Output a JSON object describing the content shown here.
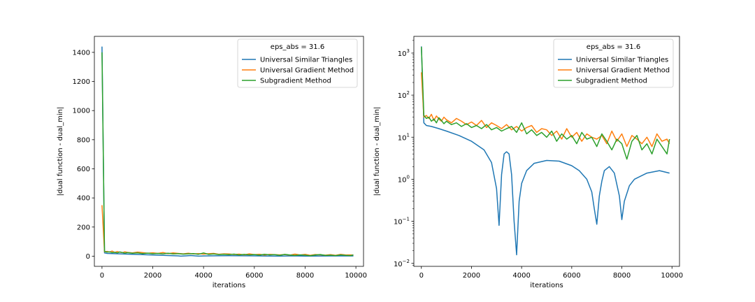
{
  "chart_data": [
    {
      "type": "line",
      "scale": "linear",
      "xlabel": "iterations",
      "ylabel": "|dual function - dual_min|",
      "xlim": [
        -300,
        10300
      ],
      "ylim": [
        -70,
        1510
      ],
      "xticks": [
        0,
        2000,
        4000,
        6000,
        8000,
        10000
      ],
      "yticks": [
        0,
        200,
        400,
        600,
        800,
        1000,
        1200,
        1400
      ],
      "legend": {
        "title": "eps_abs = 31.6",
        "placement": "top-right"
      },
      "series": [
        {
          "name": "Universal Similar Triangles",
          "color": "#1f77b4",
          "x": [
            0,
            100,
            200,
            400,
            700,
            1000,
            1500,
            2000,
            2500,
            3000,
            3100,
            3300,
            3500,
            3800,
            4000,
            4500,
            5000,
            5500,
            6000,
            6500,
            7000,
            7500,
            8000,
            8500,
            9000,
            9500,
            9900
          ],
          "y": [
            1440,
            22,
            19,
            18,
            16,
            14,
            11,
            8,
            5,
            2,
            0.1,
            2,
            4.5,
            0.02,
            1.5,
            2.5,
            2.8,
            2.6,
            2,
            1,
            0.1,
            1.9,
            0.1,
            1,
            1.5,
            1.6,
            1.4
          ]
        },
        {
          "name": "Universal Gradient Method",
          "color": "#ff7f0e",
          "x": [
            0,
            100,
            200,
            300,
            400,
            500,
            600,
            700,
            800,
            900,
            1000,
            1200,
            1400,
            1600,
            1800,
            2000,
            2200,
            2400,
            2600,
            2800,
            3000,
            3200,
            3400,
            3600,
            3800,
            4000,
            4200,
            4400,
            4600,
            4800,
            5000,
            5200,
            5400,
            5600,
            5800,
            6000,
            6200,
            6400,
            6600,
            6800,
            7000,
            7200,
            7400,
            7600,
            7800,
            8000,
            8200,
            8400,
            8600,
            8800,
            9000,
            9200,
            9400,
            9600,
            9800,
            9900
          ],
          "y": [
            350,
            30,
            33,
            28,
            35,
            25,
            32,
            27,
            24,
            30,
            26,
            22,
            28,
            24,
            20,
            23,
            19,
            25,
            17,
            22,
            19,
            16,
            20,
            15,
            18,
            14,
            17,
            19,
            13,
            16,
            15,
            11,
            14,
            9,
            16,
            10,
            13,
            8,
            12,
            10,
            9,
            11,
            7,
            14,
            8,
            12,
            6,
            11,
            9,
            7,
            10,
            6,
            12,
            8,
            9,
            7
          ]
        },
        {
          "name": "Subgradient Method",
          "color": "#2ca02c",
          "x": [
            0,
            100,
            200,
            300,
            400,
            500,
            600,
            700,
            800,
            900,
            1000,
            1200,
            1400,
            1600,
            1800,
            2000,
            2200,
            2400,
            2600,
            2800,
            3000,
            3200,
            3400,
            3600,
            3800,
            4000,
            4200,
            4400,
            4600,
            4800,
            5000,
            5200,
            5400,
            5600,
            5800,
            6000,
            6200,
            6400,
            6600,
            6800,
            7000,
            7200,
            7400,
            7600,
            7800,
            8000,
            8200,
            8400,
            8600,
            8800,
            9000,
            9200,
            9400,
            9600,
            9800,
            9900
          ],
          "y": [
            1400,
            33,
            28,
            30,
            24,
            27,
            22,
            29,
            25,
            21,
            24,
            20,
            22,
            18,
            21,
            17,
            19,
            16,
            20,
            15,
            17,
            14,
            16,
            18,
            13,
            22,
            12,
            15,
            11,
            13,
            10,
            14,
            8,
            12,
            9,
            11,
            7,
            13,
            9,
            10,
            6,
            12,
            8,
            5,
            9,
            7,
            3,
            8,
            11,
            5,
            7,
            4,
            9,
            6,
            4,
            9
          ]
        }
      ]
    },
    {
      "type": "line",
      "scale": "log",
      "xlabel": "iterations",
      "ylabel": "|dual function - dual_min|",
      "xlim": [
        -300,
        10300
      ],
      "ylim": [
        0.0085,
        2500
      ],
      "xticks": [
        0,
        2000,
        4000,
        6000,
        8000,
        10000
      ],
      "yticks": [
        0.01,
        0.1,
        1,
        10,
        100,
        1000
      ],
      "ytick_labels": [
        [
          "10",
          "−2"
        ],
        [
          "10",
          "−1"
        ],
        [
          "10",
          "0"
        ],
        [
          "10",
          "1"
        ],
        [
          "10",
          "2"
        ],
        [
          "10",
          "3"
        ]
      ],
      "legend": {
        "title": "eps_abs = 31.6",
        "placement": "top-right"
      },
      "series": [
        {
          "name": "Universal Similar Triangles",
          "color": "#1f77b4",
          "x": [
            0,
            100,
            200,
            400,
            700,
            1000,
            1500,
            2000,
            2500,
            2800,
            3000,
            3100,
            3200,
            3300,
            3400,
            3500,
            3600,
            3700,
            3800,
            3900,
            4000,
            4200,
            4500,
            5000,
            5500,
            6000,
            6300,
            6600,
            6800,
            6900,
            7000,
            7100,
            7200,
            7300,
            7500,
            7700,
            7900,
            8000,
            8100,
            8300,
            8500,
            9000,
            9500,
            9900
          ],
          "y": [
            1440,
            22,
            19,
            18,
            16,
            14,
            11,
            8,
            5,
            2.5,
            0.6,
            0.08,
            1.3,
            4,
            4.5,
            4,
            1.3,
            0.1,
            0.016,
            0.3,
            0.8,
            1.6,
            2.4,
            2.8,
            2.7,
            2.1,
            1.6,
            1,
            0.5,
            0.2,
            0.085,
            0.4,
            0.9,
            1.6,
            2,
            1.4,
            0.4,
            0.11,
            0.3,
            0.7,
            1,
            1.4,
            1.6,
            1.4
          ]
        },
        {
          "name": "Universal Gradient Method",
          "color": "#ff7f0e",
          "x": [
            0,
            100,
            200,
            300,
            400,
            500,
            600,
            700,
            800,
            900,
            1000,
            1200,
            1400,
            1600,
            1800,
            2000,
            2200,
            2400,
            2600,
            2800,
            3000,
            3200,
            3400,
            3600,
            3800,
            4000,
            4200,
            4400,
            4600,
            4800,
            5000,
            5200,
            5400,
            5600,
            5800,
            6000,
            6200,
            6400,
            6600,
            6800,
            7000,
            7200,
            7400,
            7600,
            7800,
            8000,
            8200,
            8400,
            8600,
            8800,
            9000,
            9200,
            9400,
            9600,
            9800,
            9900
          ],
          "y": [
            350,
            30,
            33,
            28,
            35,
            25,
            32,
            27,
            24,
            30,
            26,
            22,
            28,
            24,
            20,
            23,
            19,
            25,
            17,
            22,
            19,
            16,
            20,
            15,
            18,
            14,
            17,
            19,
            13,
            16,
            15,
            11,
            14,
            9,
            16,
            10,
            13,
            8,
            12,
            10,
            9,
            11,
            7,
            14,
            8,
            12,
            6,
            11,
            9,
            7,
            10,
            6,
            12,
            8,
            9,
            7
          ]
        },
        {
          "name": "Subgradient Method",
          "color": "#2ca02c",
          "x": [
            0,
            100,
            200,
            300,
            400,
            500,
            600,
            700,
            800,
            900,
            1000,
            1200,
            1400,
            1600,
            1800,
            2000,
            2200,
            2400,
            2600,
            2800,
            3000,
            3200,
            3400,
            3600,
            3800,
            4000,
            4200,
            4400,
            4600,
            4800,
            5000,
            5200,
            5400,
            5600,
            5800,
            6000,
            6200,
            6400,
            6600,
            6800,
            7000,
            7200,
            7400,
            7600,
            7800,
            8000,
            8200,
            8400,
            8600,
            8800,
            9000,
            9200,
            9400,
            9600,
            9800,
            9900
          ],
          "y": [
            1400,
            33,
            28,
            30,
            24,
            27,
            22,
            29,
            25,
            21,
            24,
            20,
            22,
            18,
            21,
            17,
            19,
            16,
            20,
            15,
            17,
            14,
            16,
            18,
            13,
            22,
            12,
            15,
            11,
            13,
            10,
            14,
            8,
            12,
            9,
            11,
            7,
            13,
            9,
            10,
            6,
            12,
            8,
            5,
            9,
            7,
            3,
            8,
            11,
            5,
            7,
            4,
            9,
            6,
            4,
            9
          ]
        }
      ]
    }
  ]
}
